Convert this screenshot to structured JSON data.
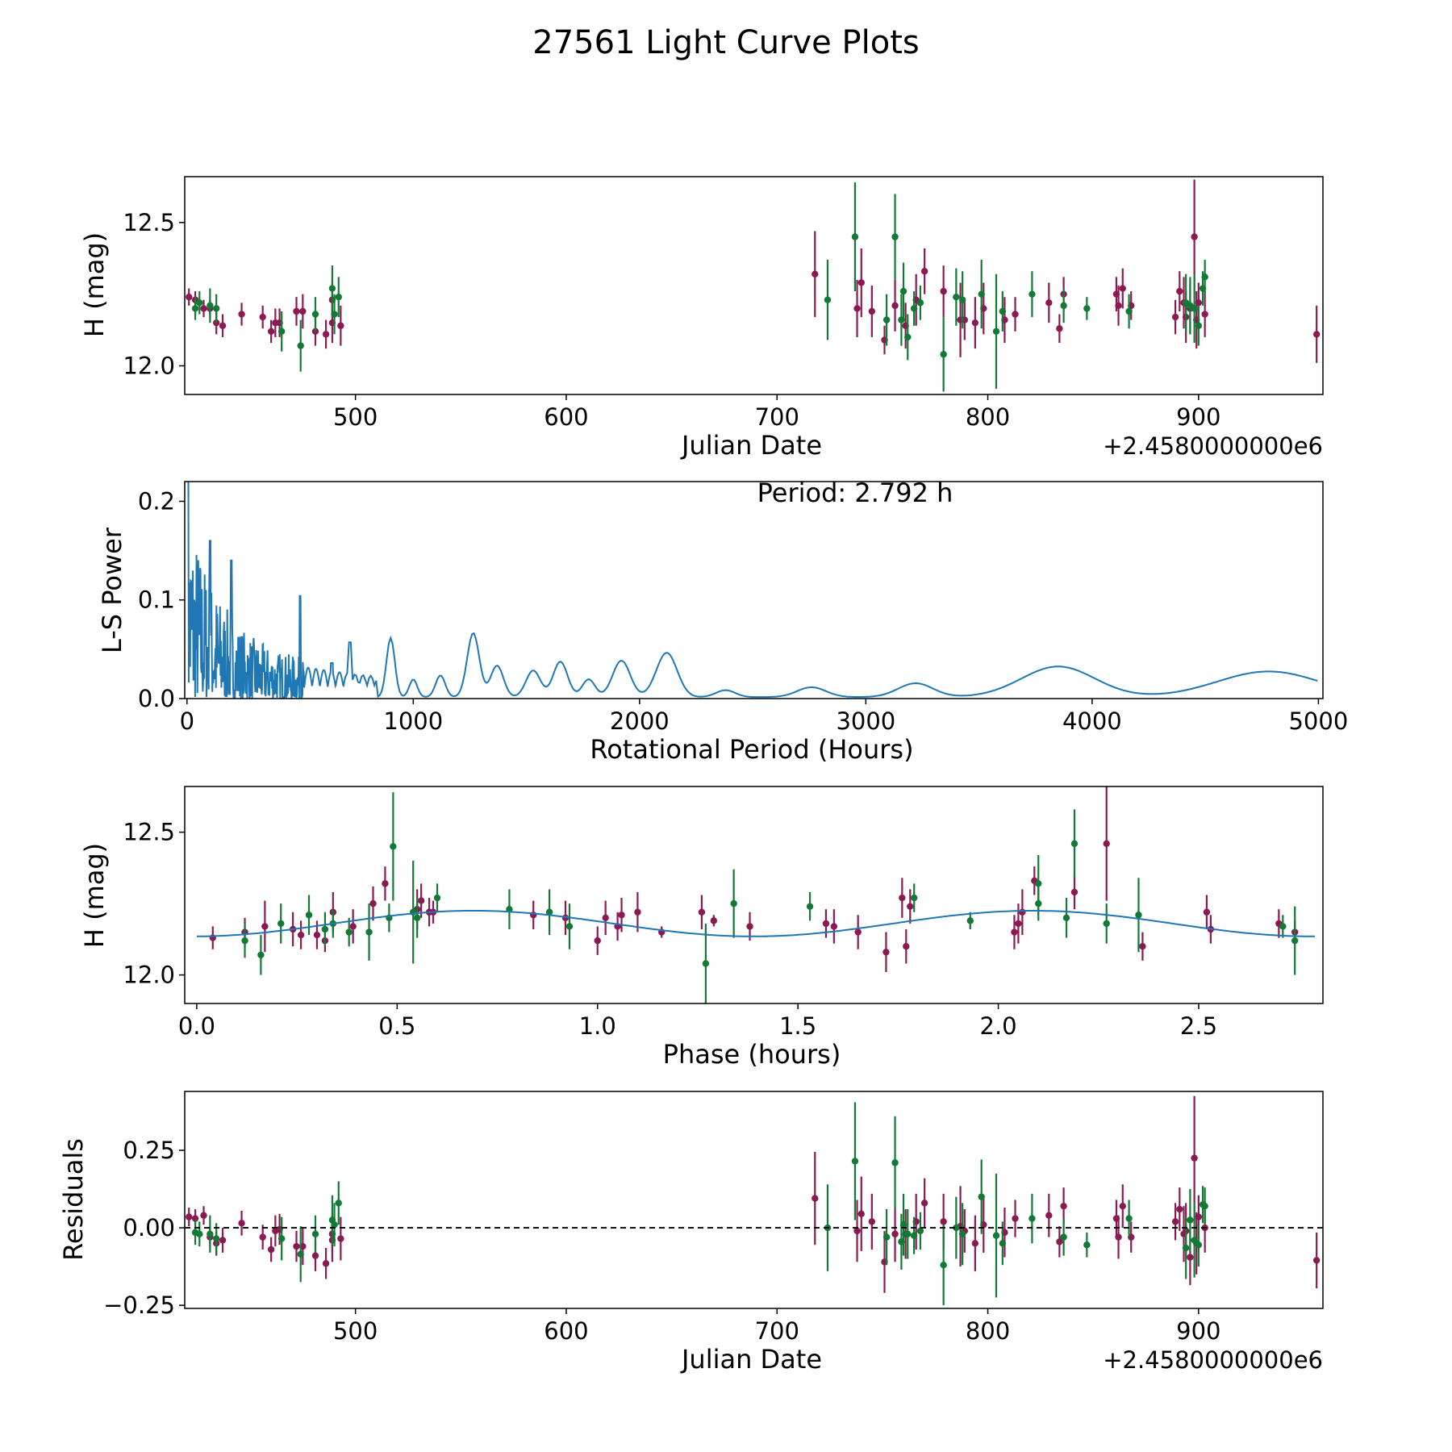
{
  "figure": {
    "title": "27561 Light Curve Plots",
    "colors": {
      "filter_a": "#8b1a54",
      "filter_b": "#127a34",
      "model": "#1f77b4",
      "periodogram": "#1f77b4",
      "zero_line": "#000000"
    }
  },
  "chart_data": [
    {
      "id": "lightcurve",
      "type": "scatter",
      "xlabel": "Julian Date",
      "ylabel": "H (mag)",
      "offset_label": "+2.4580000000e6",
      "xlim": [
        419,
        959
      ],
      "ylim": [
        11.9,
        12.66
      ],
      "xticks": [
        500,
        600,
        700,
        800,
        900
      ],
      "yticks": [
        12.0,
        12.5
      ],
      "ytick_labels": [
        "12.0",
        "12.5"
      ],
      "series": [
        {
          "name": "filter-a",
          "color": "#8b1a54",
          "x": [
            421,
            424,
            428,
            431,
            434,
            437,
            446,
            456,
            460,
            462,
            464,
            472,
            475,
            481,
            486,
            489,
            489,
            493,
            718,
            738,
            740,
            745,
            751,
            756,
            761,
            766,
            770,
            779,
            787,
            789,
            794,
            798,
            808,
            813,
            829,
            834,
            836,
            861,
            862,
            864,
            868,
            889,
            891,
            893,
            894,
            896,
            898,
            899,
            900,
            903,
            956
          ],
          "y": [
            12.24,
            12.23,
            12.2,
            12.2,
            12.15,
            12.14,
            12.18,
            12.17,
            12.12,
            12.15,
            12.15,
            12.19,
            12.19,
            12.12,
            12.11,
            12.23,
            12.15,
            12.14,
            12.32,
            12.2,
            12.29,
            12.19,
            12.09,
            12.21,
            12.14,
            12.23,
            12.33,
            12.26,
            12.16,
            12.16,
            12.15,
            12.2,
            12.16,
            12.18,
            12.22,
            12.13,
            12.25,
            12.25,
            12.21,
            12.27,
            12.21,
            12.17,
            12.26,
            12.22,
            12.17,
            12.2,
            12.45,
            12.16,
            12.22,
            12.18,
            12.11
          ],
          "err": [
            0.03,
            0.03,
            0.03,
            0.03,
            0.04,
            0.04,
            0.04,
            0.04,
            0.04,
            0.05,
            0.05,
            0.05,
            0.06,
            0.05,
            0.05,
            0.06,
            0.07,
            0.07,
            0.15,
            0.1,
            0.12,
            0.09,
            0.05,
            0.09,
            0.08,
            0.09,
            0.08,
            0.09,
            0.13,
            0.07,
            0.09,
            0.09,
            0.08,
            0.06,
            0.07,
            0.05,
            0.06,
            0.06,
            0.07,
            0.07,
            0.05,
            0.06,
            0.07,
            0.09,
            0.09,
            0.09,
            0.2,
            0.1,
            0.07,
            0.08,
            0.1
          ]
        },
        {
          "name": "filter-b",
          "color": "#127a34",
          "x": [
            424,
            426,
            431,
            434,
            465,
            474,
            481,
            489,
            490,
            492,
            724,
            737,
            752,
            756,
            759,
            760,
            762,
            765,
            768,
            779,
            785,
            788,
            797,
            804,
            807,
            821,
            836,
            847,
            867,
            894,
            896,
            898,
            900,
            902,
            903
          ],
          "y": [
            12.2,
            12.22,
            12.21,
            12.2,
            12.12,
            12.07,
            12.18,
            12.27,
            12.18,
            12.24,
            12.23,
            12.45,
            12.16,
            12.45,
            12.16,
            12.26,
            12.1,
            12.2,
            12.22,
            12.04,
            12.24,
            12.23,
            12.25,
            12.12,
            12.19,
            12.25,
            12.21,
            12.2,
            12.19,
            12.22,
            12.21,
            12.2,
            12.14,
            12.27,
            12.31
          ],
          "err": [
            0.04,
            0.04,
            0.06,
            0.05,
            0.07,
            0.09,
            0.06,
            0.08,
            0.07,
            0.07,
            0.14,
            0.19,
            0.09,
            0.15,
            0.09,
            0.1,
            0.08,
            0.06,
            0.06,
            0.13,
            0.1,
            0.1,
            0.12,
            0.2,
            0.07,
            0.08,
            0.06,
            0.04,
            0.06,
            0.1,
            0.1,
            0.12,
            0.07,
            0.06,
            0.06
          ]
        }
      ]
    },
    {
      "id": "periodogram",
      "type": "line",
      "xlabel": "Rotational Period (Hours)",
      "ylabel": "L-S Power",
      "annotation": "Period: 2.792 h",
      "xlim": [
        -10,
        5020
      ],
      "ylim": [
        0,
        0.22
      ],
      "xticks": [
        0,
        1000,
        2000,
        3000,
        4000,
        5000
      ],
      "yticks": [
        0.0,
        0.1,
        0.2
      ],
      "ytick_labels": [
        "0.0",
        "0.1",
        "0.2"
      ],
      "peaks": [
        {
          "p": 900,
          "a": 0.06,
          "w": 26
        },
        {
          "p": 1000,
          "a": 0.018,
          "w": 25
        },
        {
          "p": 1120,
          "a": 0.022,
          "w": 30
        },
        {
          "p": 1265,
          "a": 0.065,
          "w": 38
        },
        {
          "p": 1370,
          "a": 0.032,
          "w": 40
        },
        {
          "p": 1530,
          "a": 0.027,
          "w": 45
        },
        {
          "p": 1650,
          "a": 0.036,
          "w": 45
        },
        {
          "p": 1775,
          "a": 0.018,
          "w": 40
        },
        {
          "p": 1920,
          "a": 0.037,
          "w": 55
        },
        {
          "p": 2120,
          "a": 0.045,
          "w": 65
        },
        {
          "p": 2380,
          "a": 0.007,
          "w": 60
        },
        {
          "p": 2760,
          "a": 0.01,
          "w": 90
        },
        {
          "p": 3220,
          "a": 0.014,
          "w": 110
        },
        {
          "p": 3850,
          "a": 0.031,
          "w": 230
        },
        {
          "p": 4780,
          "a": 0.026,
          "w": 320
        }
      ]
    },
    {
      "id": "phased",
      "type": "scatter",
      "xlabel": "Phase (hours)",
      "ylabel": "H (mag)",
      "xlim": [
        -0.03,
        2.81
      ],
      "ylim": [
        11.9,
        12.66
      ],
      "xticks": [
        0.0,
        0.5,
        1.0,
        1.5,
        2.0,
        2.5
      ],
      "xtick_labels": [
        "0.0",
        "0.5",
        "1.0",
        "1.5",
        "2.0",
        "2.5"
      ],
      "yticks": [
        12.0,
        12.5
      ],
      "ytick_labels": [
        "12.0",
        "12.5"
      ],
      "model": {
        "mean": 12.18,
        "amplitude": 0.045,
        "period": 1.396,
        "phase_of_max": 0.69
      },
      "series": [
        {
          "name": "filter-a",
          "color": "#8b1a54",
          "x": [
            0.04,
            0.12,
            0.17,
            0.24,
            0.26,
            0.3,
            0.32,
            0.34,
            0.39,
            0.44,
            0.47,
            0.55,
            0.56,
            0.58,
            0.59,
            0.84,
            0.92,
            1.0,
            1.02,
            1.05,
            1.06,
            1.1,
            1.16,
            1.26,
            1.29,
            1.38,
            1.57,
            1.59,
            1.65,
            1.72,
            1.76,
            1.77,
            1.78,
            2.04,
            2.05,
            2.06,
            2.09,
            2.19,
            2.27,
            2.36,
            2.52,
            2.53,
            2.7,
            2.74
          ],
          "y": [
            12.13,
            12.15,
            12.17,
            12.16,
            12.14,
            12.14,
            12.12,
            12.22,
            12.17,
            12.25,
            12.32,
            12.23,
            12.26,
            12.22,
            12.22,
            12.21,
            12.2,
            12.12,
            12.2,
            12.17,
            12.21,
            12.22,
            12.15,
            12.22,
            12.19,
            12.17,
            12.18,
            12.17,
            12.15,
            12.08,
            12.27,
            12.1,
            12.24,
            12.15,
            12.18,
            12.22,
            12.33,
            12.29,
            12.46,
            12.1,
            12.22,
            12.16,
            12.18,
            12.15
          ],
          "err": [
            0.04,
            0.05,
            0.09,
            0.06,
            0.05,
            0.05,
            0.04,
            0.07,
            0.06,
            0.06,
            0.06,
            0.07,
            0.06,
            0.05,
            0.04,
            0.05,
            0.06,
            0.05,
            0.06,
            0.05,
            0.06,
            0.07,
            0.02,
            0.06,
            0.02,
            0.05,
            0.05,
            0.06,
            0.06,
            0.07,
            0.07,
            0.06,
            0.06,
            0.06,
            0.07,
            0.08,
            0.05,
            0.06,
            0.2,
            0.05,
            0.06,
            0.05,
            0.05,
            0.04
          ]
        },
        {
          "name": "filter-b",
          "color": "#127a34",
          "x": [
            0.12,
            0.16,
            0.21,
            0.28,
            0.32,
            0.34,
            0.38,
            0.43,
            0.48,
            0.49,
            0.54,
            0.55,
            0.6,
            0.78,
            0.88,
            0.93,
            1.27,
            1.34,
            1.53,
            1.79,
            1.93,
            2.1,
            2.1,
            2.17,
            2.19,
            2.27,
            2.35,
            2.71,
            2.74
          ],
          "y": [
            12.12,
            12.07,
            12.18,
            12.21,
            12.16,
            12.18,
            12.15,
            12.15,
            12.2,
            12.45,
            12.22,
            12.2,
            12.27,
            12.23,
            12.22,
            12.17,
            12.04,
            12.25,
            12.24,
            12.27,
            12.19,
            12.25,
            12.32,
            12.2,
            12.46,
            12.18,
            12.21,
            12.17,
            12.12
          ],
          "err": [
            0.06,
            0.07,
            0.07,
            0.07,
            0.06,
            0.05,
            0.05,
            0.1,
            0.05,
            0.19,
            0.18,
            0.07,
            0.05,
            0.07,
            0.08,
            0.08,
            0.14,
            0.12,
            0.05,
            0.05,
            0.03,
            0.06,
            0.1,
            0.07,
            0.12,
            0.07,
            0.13,
            0.04,
            0.12
          ]
        }
      ]
    },
    {
      "id": "residuals",
      "type": "scatter",
      "xlabel": "Julian Date",
      "ylabel": "Residuals",
      "offset_label": "+2.4580000000e6",
      "xlim": [
        419,
        959
      ],
      "ylim": [
        -0.26,
        0.44
      ],
      "xticks": [
        500,
        600,
        700,
        800,
        900
      ],
      "yticks": [
        -0.25,
        0.0,
        0.25
      ],
      "ytick_labels": [
        "−0.25",
        "0.00",
        "0.25"
      ],
      "hline": 0,
      "series": [
        {
          "name": "filter-a",
          "color": "#8b1a54",
          "x": [
            421,
            424,
            428,
            431,
            434,
            437,
            446,
            456,
            460,
            462,
            464,
            472,
            475,
            481,
            486,
            489,
            489,
            493,
            718,
            738,
            740,
            745,
            751,
            756,
            761,
            766,
            770,
            779,
            787,
            789,
            794,
            798,
            808,
            813,
            829,
            834,
            836,
            861,
            862,
            864,
            868,
            889,
            891,
            893,
            894,
            896,
            898,
            899,
            900,
            903,
            956
          ],
          "y": [
            0.035,
            0.03,
            0.04,
            -0.03,
            -0.05,
            -0.04,
            0.015,
            -0.03,
            -0.07,
            -0.01,
            -0.005,
            -0.06,
            -0.06,
            -0.09,
            -0.115,
            -0.02,
            -0.04,
            -0.035,
            0.095,
            -0.01,
            0.045,
            0.02,
            -0.11,
            -0.02,
            -0.02,
            0.02,
            0.08,
            0.02,
            0.005,
            -0.01,
            -0.05,
            0.01,
            -0.015,
            0.03,
            0.04,
            -0.045,
            0.07,
            0.03,
            -0.03,
            0.07,
            -0.03,
            0.02,
            0.06,
            -0.02,
            -0.01,
            -0.095,
            0.225,
            -0.05,
            0.035,
            0.0,
            -0.105
          ],
          "err": [
            0.03,
            0.03,
            0.03,
            0.03,
            0.04,
            0.04,
            0.04,
            0.04,
            0.04,
            0.05,
            0.05,
            0.05,
            0.06,
            0.05,
            0.05,
            0.06,
            0.07,
            0.07,
            0.15,
            0.1,
            0.12,
            0.09,
            0.1,
            0.09,
            0.08,
            0.09,
            0.08,
            0.09,
            0.13,
            0.07,
            0.09,
            0.09,
            0.08,
            0.06,
            0.07,
            0.05,
            0.06,
            0.06,
            0.07,
            0.07,
            0.05,
            0.06,
            0.07,
            0.09,
            0.09,
            0.09,
            0.2,
            0.1,
            0.07,
            0.08,
            0.09
          ]
        },
        {
          "name": "filter-b",
          "color": "#127a34",
          "x": [
            424,
            426,
            431,
            434,
            465,
            474,
            481,
            489,
            490,
            492,
            724,
            737,
            752,
            756,
            759,
            760,
            762,
            765,
            768,
            779,
            785,
            788,
            797,
            804,
            807,
            821,
            836,
            847,
            867,
            894,
            896,
            898,
            900,
            902,
            903
          ],
          "y": [
            -0.015,
            -0.02,
            -0.02,
            -0.035,
            -0.035,
            -0.085,
            -0.02,
            0.025,
            0.01,
            0.08,
            0.0,
            0.215,
            -0.03,
            0.21,
            -0.045,
            0.01,
            -0.02,
            -0.025,
            -0.01,
            -0.12,
            0.0,
            -0.02,
            0.1,
            -0.025,
            -0.05,
            0.03,
            -0.03,
            -0.055,
            0.03,
            -0.065,
            0.025,
            -0.04,
            -0.055,
            0.075,
            0.07
          ],
          "err": [
            0.04,
            0.04,
            0.06,
            0.05,
            0.07,
            0.09,
            0.06,
            0.08,
            0.07,
            0.07,
            0.14,
            0.19,
            0.09,
            0.15,
            0.09,
            0.1,
            0.08,
            0.06,
            0.06,
            0.13,
            0.1,
            0.1,
            0.12,
            0.2,
            0.07,
            0.08,
            0.06,
            0.04,
            0.06,
            0.1,
            0.1,
            0.12,
            0.07,
            0.06,
            0.06
          ]
        }
      ]
    }
  ]
}
